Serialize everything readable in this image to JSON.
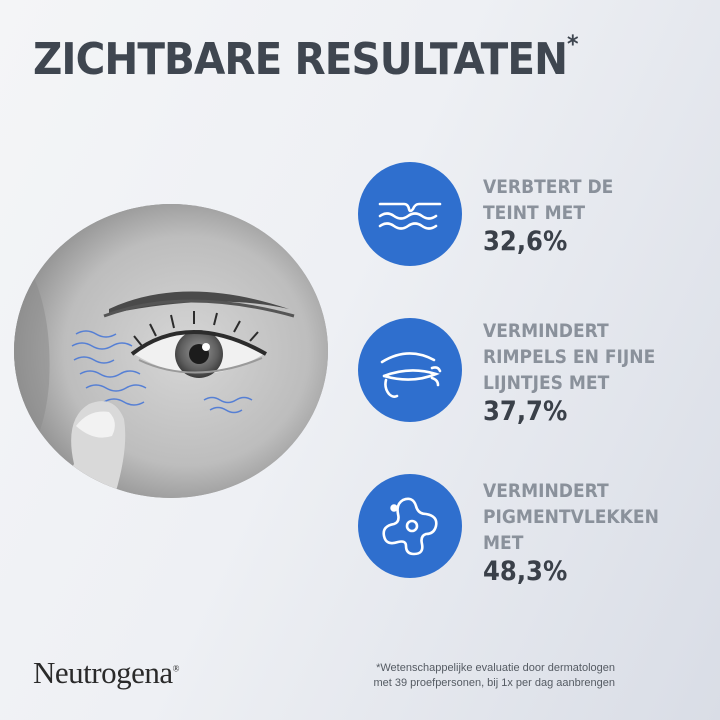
{
  "header": {
    "title": "ZICHTBARE RESULTATEN",
    "title_mark": "*"
  },
  "results": [
    {
      "icon": "skin-texture-icon",
      "lines": [
        "VERBTERT DE",
        "TEINT MET"
      ],
      "value": "32,6%"
    },
    {
      "icon": "eye-wrinkles-icon",
      "lines": [
        "VERMINDERT",
        "RIMPELS EN FIJNE",
        "LIJNTJES MET"
      ],
      "value": "37,7%"
    },
    {
      "icon": "pigment-spot-icon",
      "lines": [
        "VERMINDERT",
        "PIGMENTVLEKKEN",
        "MET"
      ],
      "value": "48,3%"
    }
  ],
  "brand": {
    "name": "Neutrogena",
    "mark": "®"
  },
  "footnote": {
    "line1": "*Wetenschappelijke evaluatie door dermatologen",
    "line2": "met 39 proefpersonen, bij 1x per dag aanbrengen"
  },
  "colors": {
    "accent": "#2f6fce",
    "heading": "#3f4650",
    "label": "#8a919b",
    "value": "#3a4049"
  }
}
